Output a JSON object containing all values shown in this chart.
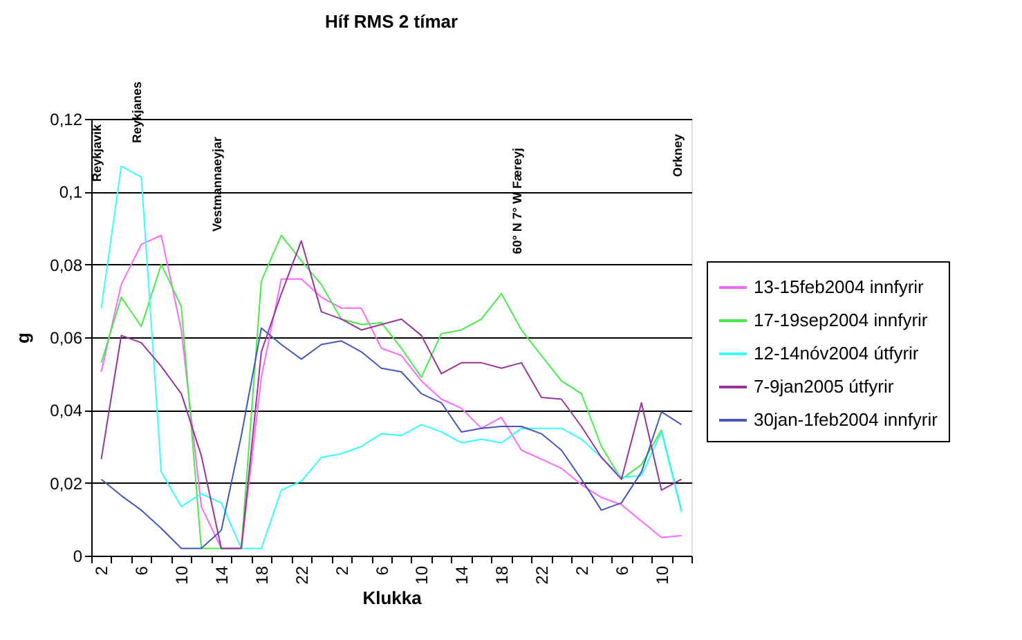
{
  "chart_data": {
    "type": "line",
    "title": "Híf RMS 2 tímar",
    "xlabel": "Klukka",
    "ylabel": "g",
    "categories": [
      "2",
      null,
      "6",
      null,
      "10",
      null,
      "14",
      null,
      "18",
      null,
      "22",
      null,
      "2",
      null,
      "6",
      null,
      "10",
      null,
      "14",
      null,
      "18",
      null,
      "22",
      null,
      "2",
      null,
      "6",
      null,
      "10",
      null
    ],
    "series": [
      {
        "name": "13-15feb2004 innfyrir",
        "color": "#ff66ff",
        "values": [
          0.0505,
          0.0745,
          0.0855,
          0.088,
          0.062,
          0.0135,
          0.002,
          0.002,
          0.049,
          0.076,
          0.076,
          0.071,
          0.068,
          0.068,
          0.057,
          0.055,
          0.048,
          0.043,
          0.0405,
          0.035,
          0.038,
          0.029,
          0.0265,
          0.024,
          0.0195,
          0.016,
          0.014,
          0.0095,
          0.005,
          0.0055
        ]
      },
      {
        "name": "17-19sep2004 innfyrir",
        "color": "#44ee44",
        "values": [
          0.053,
          0.071,
          0.063,
          0.08,
          0.0685,
          0.002,
          0.002,
          0.002,
          0.0755,
          0.088,
          0.081,
          0.0745,
          0.065,
          0.0635,
          0.064,
          0.057,
          0.049,
          0.061,
          0.062,
          0.065,
          0.072,
          0.062,
          0.055,
          0.048,
          0.0445,
          0.03,
          0.021,
          0.025,
          0.0345,
          0.0125
        ]
      },
      {
        "name": "12-14nóv2004 útfyrir",
        "color": "#33ffff",
        "values": [
          0.068,
          0.107,
          0.104,
          0.023,
          0.0135,
          0.017,
          0.0145,
          0.002,
          0.002,
          0.018,
          0.0205,
          0.027,
          0.028,
          0.03,
          0.0335,
          0.033,
          0.036,
          0.034,
          0.031,
          0.032,
          0.031,
          0.035,
          0.035,
          0.035,
          0.032,
          0.027,
          0.0215,
          0.022,
          0.034,
          0.012
        ]
      },
      {
        "name": "7-9jan2005 útfyrir",
        "color": "#993399",
        "values": [
          0.0265,
          0.0605,
          0.0585,
          0.052,
          0.0445,
          0.0275,
          0.002,
          0.002,
          0.056,
          0.072,
          0.0865,
          0.067,
          0.065,
          0.062,
          0.0635,
          0.065,
          0.0605,
          0.05,
          0.053,
          0.053,
          0.0515,
          0.053,
          0.0435,
          0.043,
          0.0355,
          0.027,
          0.021,
          0.042,
          0.018,
          0.021
        ]
      },
      {
        "name": "30jan-1feb2004 innfyrir",
        "color": "#4455bb",
        "values": [
          0.021,
          0.0165,
          0.0125,
          0.0075,
          0.002,
          0.002,
          0.007,
          0.033,
          0.0625,
          0.058,
          0.054,
          0.058,
          0.059,
          0.056,
          0.0515,
          0.0505,
          0.0445,
          0.042,
          0.034,
          0.035,
          0.0355,
          0.0355,
          0.0335,
          0.029,
          0.021,
          0.0125,
          0.0145,
          0.023,
          0.0395,
          0.036
        ]
      }
    ],
    "ylim": [
      0,
      0.12
    ],
    "yticks": [
      0,
      {
        "value": 0.02,
        "label": "0,02"
      },
      {
        "value": 0.04,
        "label": "0,04"
      },
      {
        "value": 0.06,
        "label": "0,06"
      },
      {
        "value": 0.08,
        "label": "0,08"
      },
      {
        "value": 0.1,
        "label": "0,1"
      },
      {
        "value": 0.12,
        "label": "0,12"
      }
    ],
    "grid": "y",
    "legend": "right",
    "annotations": [
      "Reykjavik",
      "Reykjanes",
      "Vestmannaeyjar",
      "60° N  7° W  Færeyj",
      "Orkney"
    ]
  }
}
